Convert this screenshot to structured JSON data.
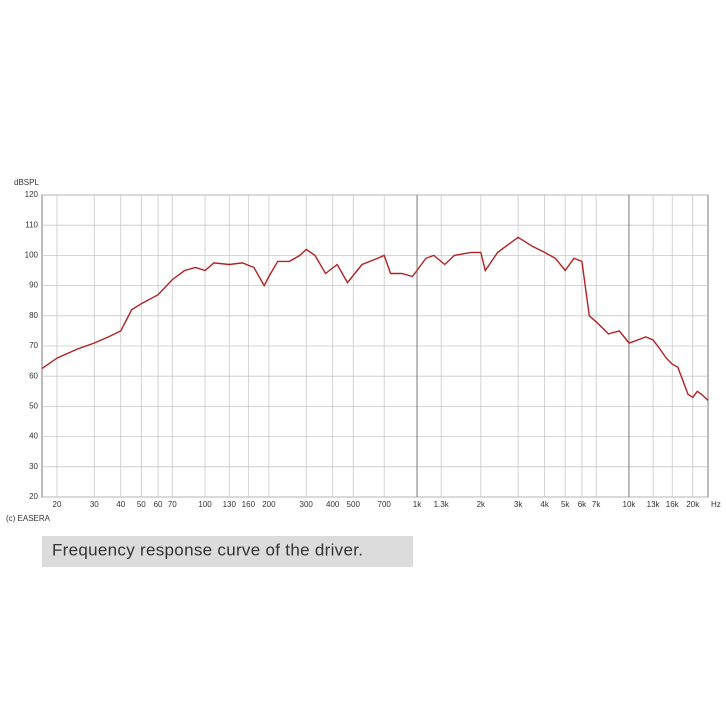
{
  "chart_data": {
    "type": "line",
    "y_label": "dBSPL",
    "x_label": "Hz",
    "annotation": "(c) EASERA",
    "caption": "Frequency response curve of the driver.",
    "xscale": "log",
    "grid": true,
    "color": "#b22222",
    "xlim": [
      17,
      23600
    ],
    "ylim": [
      20,
      120
    ],
    "yticks": [
      20,
      30,
      40,
      50,
      60,
      70,
      80,
      90,
      100,
      110,
      120
    ],
    "xticks": [
      20,
      30,
      40,
      50,
      60,
      70,
      100,
      130,
      160,
      200,
      300,
      400,
      500,
      700,
      {
        "value": 1000,
        "label": "1k"
      },
      {
        "value": 1300,
        "label": "1.3k"
      },
      {
        "value": 2000,
        "label": "2k"
      },
      {
        "value": 3000,
        "label": "3k"
      },
      {
        "value": 4000,
        "label": "4k"
      },
      {
        "value": 5000,
        "label": "5k"
      },
      {
        "value": 6000,
        "label": "6k"
      },
      {
        "value": 7000,
        "label": "7k"
      },
      {
        "value": 10000,
        "label": "10k"
      },
      {
        "value": 13000,
        "label": "13k"
      },
      {
        "value": 16000,
        "label": "16k"
      },
      {
        "value": 20000,
        "label": "20k"
      }
    ],
    "x": [
      17,
      20,
      25,
      30,
      35,
      40,
      45,
      50,
      60,
      70,
      80,
      90,
      100,
      110,
      130,
      150,
      170,
      190,
      200,
      220,
      250,
      280,
      300,
      330,
      370,
      420,
      470,
      550,
      650,
      700,
      750,
      850,
      950,
      1000,
      1100,
      1200,
      1350,
      1500,
      1800,
      2000,
      2100,
      2400,
      3000,
      3500,
      4000,
      4500,
      5000,
      5500,
      6000,
      6500,
      7000,
      7500,
      8000,
      9000,
      10000,
      11000,
      12000,
      13000,
      14000,
      15000,
      16000,
      17000,
      19000,
      20000,
      21000,
      22000,
      23600
    ],
    "values": [
      62.5,
      66,
      69,
      71,
      73,
      75,
      82,
      84,
      87,
      92,
      95,
      96,
      95,
      97.5,
      97,
      97.5,
      96,
      90,
      93,
      98,
      98,
      100,
      102,
      100,
      94,
      97,
      91,
      97,
      99,
      100,
      94,
      94,
      93,
      95,
      99,
      100,
      97,
      100,
      101,
      101,
      95,
      101,
      106,
      103,
      101,
      99,
      95,
      99,
      98,
      80,
      78,
      76,
      74,
      75,
      71,
      72,
      73,
      72,
      69,
      66,
      64,
      63,
      54,
      53,
      55,
      54,
      52
    ]
  }
}
